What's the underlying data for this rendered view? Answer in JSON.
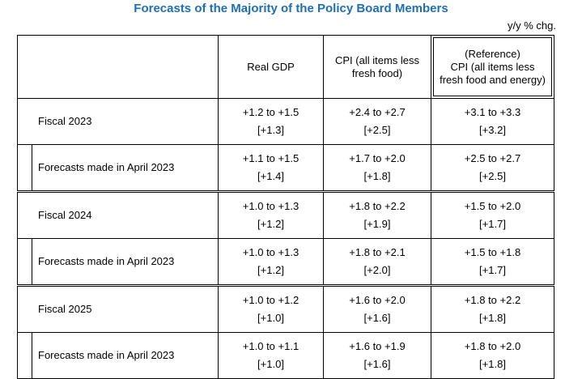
{
  "title": "Forecasts of the Majority of the Policy Board Members",
  "unit": "y/y % chg.",
  "headers": {
    "gdp": "Real GDP",
    "cpi_line1": "CPI (all items less",
    "cpi_line2": "fresh food)",
    "ref_line1": "(Reference)",
    "ref_line2": "CPI (all items less",
    "ref_line3": "fresh food and energy)"
  },
  "rows": [
    {
      "label": "Fiscal 2023",
      "gdp": "+1.2 to +1.5",
      "gdp_med": "[+1.3]",
      "cpi": "+2.4 to +2.7",
      "cpi_med": "[+2.5]",
      "ref": "+3.1 to +3.3",
      "ref_med": "[+3.2]"
    },
    {
      "label": "Forecasts made in April 2023",
      "gdp": "+1.1 to +1.5",
      "gdp_med": "[+1.4]",
      "cpi": "+1.7 to +2.0",
      "cpi_med": "[+1.8]",
      "ref": "+2.5 to +2.7",
      "ref_med": "[+2.5]"
    },
    {
      "label": "Fiscal 2024",
      "gdp": "+1.0 to +1.3",
      "gdp_med": "[+1.2]",
      "cpi": "+1.8 to +2.2",
      "cpi_med": "[+1.9]",
      "ref": "+1.5 to +2.0",
      "ref_med": "[+1.7]"
    },
    {
      "label": "Forecasts made in April 2023",
      "gdp": "+1.0 to +1.3",
      "gdp_med": "[+1.2]",
      "cpi": "+1.8 to +2.1",
      "cpi_med": "[+2.0]",
      "ref": "+1.5 to +1.8",
      "ref_med": "[+1.7]"
    },
    {
      "label": "Fiscal 2025",
      "gdp": "+1.0 to +1.2",
      "gdp_med": "[+1.0]",
      "cpi": "+1.6 to +2.0",
      "cpi_med": "[+1.6]",
      "ref": "+1.8 to +2.2",
      "ref_med": "[+1.8]"
    },
    {
      "label": "Forecasts made in April 2023",
      "gdp": "+1.0 to +1.1",
      "gdp_med": "[+1.0]",
      "cpi": "+1.6 to +1.9",
      "cpi_med": "[+1.6]",
      "ref": "+1.8 to +2.0",
      "ref_med": "[+1.8]"
    }
  ]
}
